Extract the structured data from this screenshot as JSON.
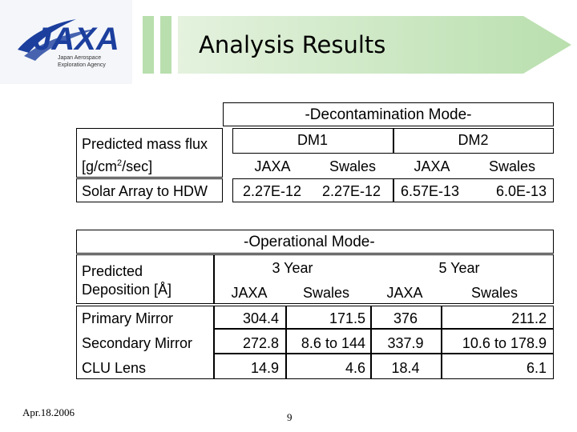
{
  "logo": {
    "text": "JAXA",
    "line1": "Japan Aerospace",
    "line2": "Exploration Agency"
  },
  "page_title": "Analysis Results",
  "table1": {
    "mode": "-Decontamination Mode-",
    "group1": "DM1",
    "group2": "DM2",
    "row_header_line1": "Predicted mass flux",
    "row_header_line2_prefix": "[g/cm",
    "row_header_sup": "2",
    "row_header_line2_suffix": "/sec]",
    "col1": "JAXA",
    "col2": "Swales",
    "col3": "JAXA",
    "col4": "Swales",
    "row": {
      "label": "Solar Array to HDW",
      "v1": "2.27E-12",
      "v2": "2.27E-12",
      "v3": "6.57E-13",
      "v4": "6.0E-13"
    }
  },
  "table2": {
    "mode": "-Operational Mode-",
    "group1": "3 Year",
    "group2": "5 Year",
    "row_header_line1": "Predicted",
    "row_header_line2": "Deposition [Å]",
    "col1": "JAXA",
    "col2": "Swales",
    "col3": "JAXA",
    "col4": "Swales",
    "rows": [
      {
        "label": "Primary Mirror",
        "v1": "304.4",
        "v2": "171.5",
        "v3": "376",
        "v4": "211.2"
      },
      {
        "label": "Secondary Mirror",
        "v1": "272.8",
        "v2": "8.6 to 144",
        "v3": "337.9",
        "v4": "10.6 to 178.9"
      },
      {
        "label": "CLU Lens",
        "v1": "14.9",
        "v2": "4.6",
        "v3": "18.4",
        "v4": "6.1"
      }
    ]
  },
  "footer": {
    "date": "Apr.18.2006",
    "page_number": "9"
  },
  "colors": {
    "logo_blue": "#1c3f9e",
    "banner_green": "#b9dfae",
    "banner_light": "#e4f2de"
  }
}
